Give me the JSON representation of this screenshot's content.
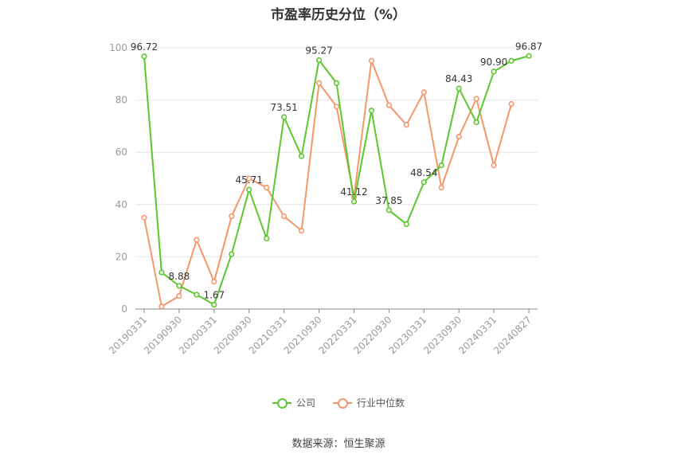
{
  "chart_data": {
    "type": "line",
    "title": "市盈率历史分位（%）",
    "ylim": [
      0,
      100
    ],
    "yticks": [
      0,
      20,
      40,
      60,
      80,
      100
    ],
    "x": [
      "20190331",
      "20190630",
      "20190930",
      "20191231",
      "20200331",
      "20200630",
      "20200930",
      "20201231",
      "20210331",
      "20210630",
      "20210930",
      "20211231",
      "20220331",
      "20220630",
      "20220930",
      "20221231",
      "20230331",
      "20230630",
      "20230930",
      "20231231",
      "20240331",
      "20240630",
      "20240827"
    ],
    "x_tick_labels": [
      "20190331",
      "20190930",
      "20200331",
      "20200930",
      "20210331",
      "20210930",
      "20220331",
      "20220930",
      "20230331",
      "20230930",
      "20240331",
      "20240827"
    ],
    "series": [
      {
        "name": "公司",
        "color": "#5cc72e",
        "values": [
          96.72,
          14.0,
          8.88,
          5.5,
          1.67,
          21.0,
          45.71,
          27.0,
          73.51,
          58.5,
          95.27,
          86.5,
          41.12,
          76.0,
          37.85,
          32.5,
          48.54,
          55.0,
          84.43,
          71.5,
          90.9,
          95.0,
          96.87
        ],
        "labels": {
          "0": "96.72",
          "2": "8.88",
          "4": "1.67",
          "6": "45.71",
          "8": "73.51",
          "10": "95.27",
          "12": "41.12",
          "14": "37.85",
          "16": "48.54",
          "18": "84.43",
          "20": "90.90",
          "22": "96.87"
        }
      },
      {
        "name": "行业中位数",
        "color": "#f5966b",
        "values": [
          35.0,
          1.0,
          5.0,
          26.5,
          10.5,
          35.5,
          50.0,
          46.5,
          35.5,
          30.0,
          86.5,
          77.5,
          43.0,
          95.0,
          78.0,
          70.5,
          83.0,
          46.5,
          66.0,
          80.5,
          55.0,
          78.5,
          null
        ]
      }
    ],
    "grid": true,
    "legend_position": "bottom"
  },
  "source": "数据来源：恒生聚源"
}
